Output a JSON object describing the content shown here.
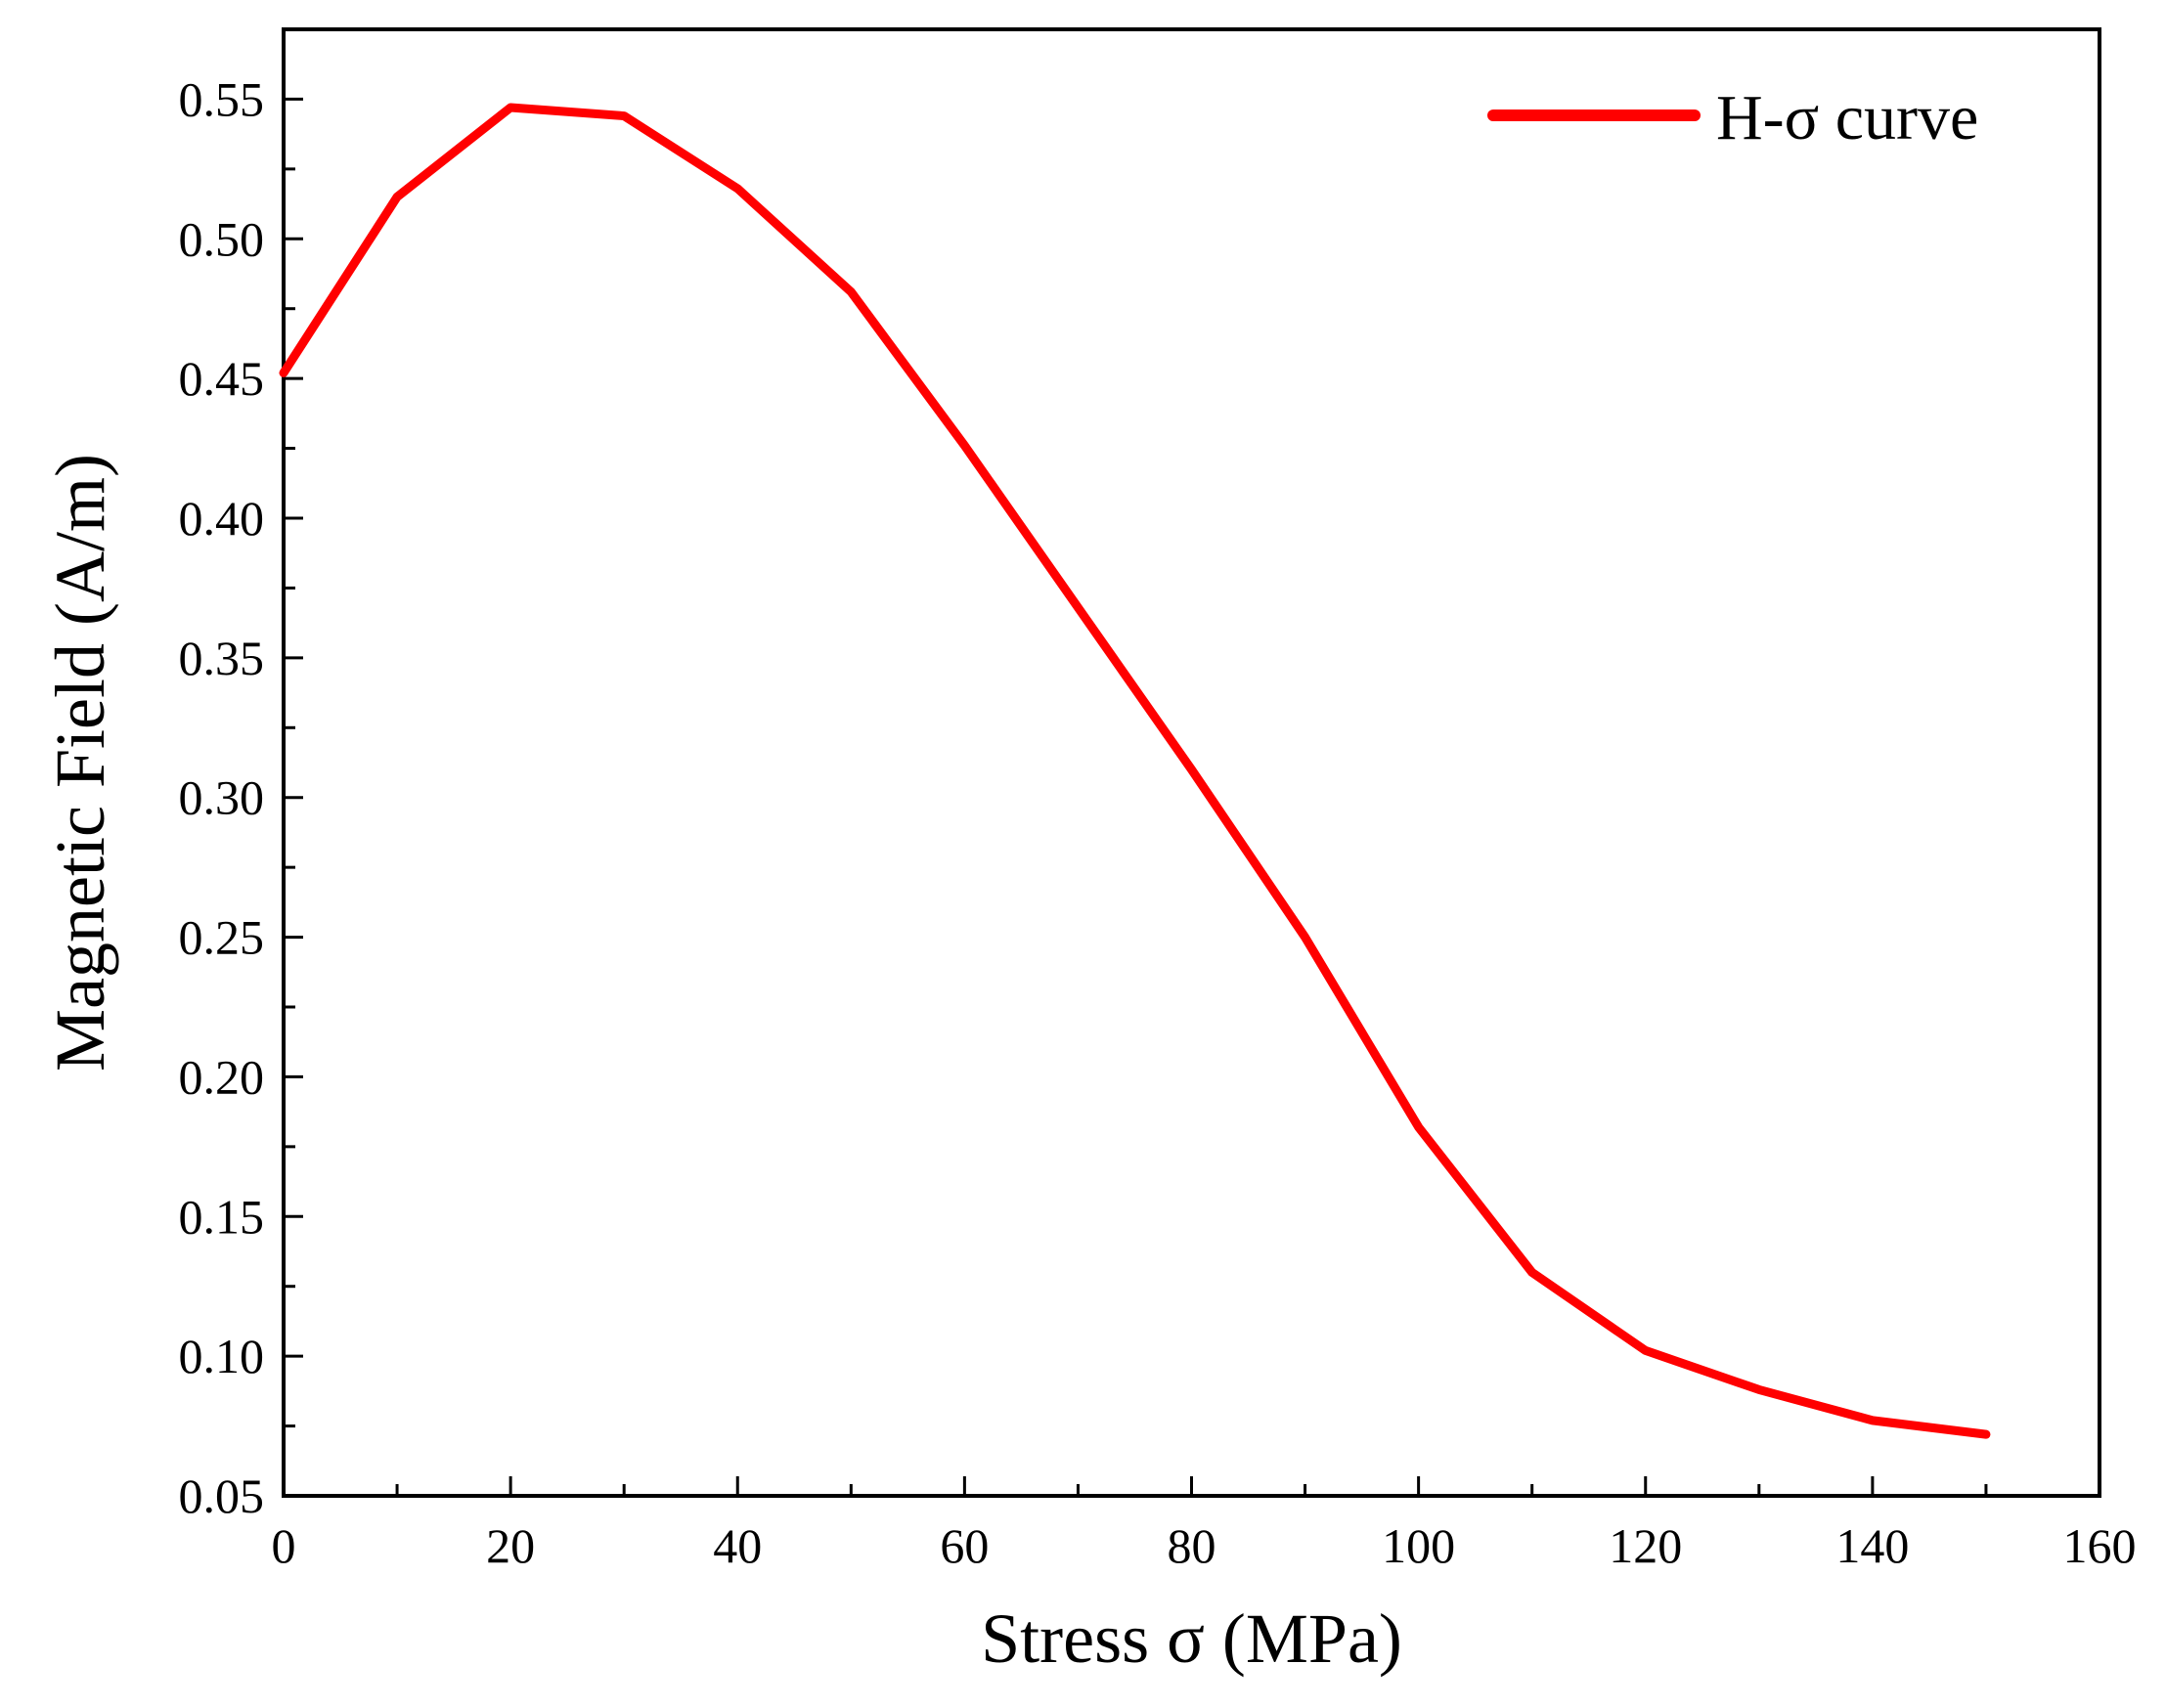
{
  "chart_data": {
    "type": "line",
    "title": "",
    "xlabel": "Stress σ (MPa)",
    "ylabel": "Magnetic Field (A/m)",
    "xlim": [
      0,
      160
    ],
    "ylim": [
      0.05,
      0.575
    ],
    "x_ticks": [
      0,
      20,
      40,
      60,
      80,
      100,
      120,
      140,
      160
    ],
    "x_tick_labels": [
      "0",
      "20",
      "40",
      "60",
      "80",
      "100",
      "120",
      "140",
      "160"
    ],
    "y_ticks": [
      0.05,
      0.1,
      0.15,
      0.2,
      0.25,
      0.3,
      0.35,
      0.4,
      0.45,
      0.5,
      0.55
    ],
    "y_tick_labels": [
      "0.05",
      "0.10",
      "0.15",
      "0.20",
      "0.25",
      "0.30",
      "0.35",
      "0.40",
      "0.45",
      "0.50",
      "0.55"
    ],
    "grid": false,
    "legend_position": "top-right",
    "series": [
      {
        "name": "H-σ curve",
        "color": "#ff0000",
        "x": [
          0,
          10,
          20,
          30,
          40,
          50,
          60,
          70,
          80,
          90,
          100,
          110,
          120,
          130,
          140,
          150
        ],
        "values": [
          0.452,
          0.515,
          0.547,
          0.544,
          0.518,
          0.481,
          0.426,
          0.368,
          0.31,
          0.25,
          0.182,
          0.13,
          0.102,
          0.088,
          0.077,
          0.072
        ]
      }
    ]
  }
}
